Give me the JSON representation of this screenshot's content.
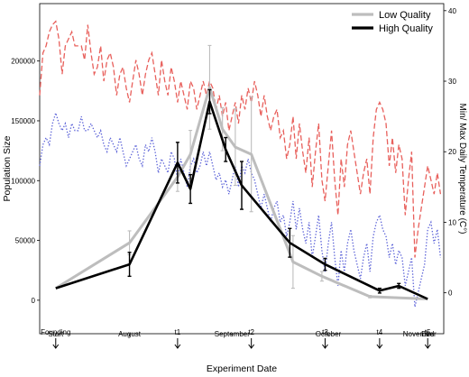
{
  "chart_data": {
    "type": "line",
    "xlabel": "Experiment Date",
    "ylabel_left": "Population Size",
    "ylabel_right": "Min/ Max Daily Temperature (C°)",
    "x_range_days": [
      -5,
      121
    ],
    "ylim_left": [
      -28000,
      248000
    ],
    "ylim_right": [
      -5.8,
      41
    ],
    "x_ticks": [
      {
        "label": "Start",
        "day": 0
      },
      {
        "label": "August",
        "day": 23
      },
      {
        "label": "September",
        "day": 55
      },
      {
        "label": "October",
        "day": 85
      },
      {
        "label": "November",
        "day": 116,
        "offset_label": true
      },
      {
        "label": "End",
        "day": 116
      }
    ],
    "y_ticks_left": [
      0,
      50000,
      100000,
      150000,
      200000
    ],
    "y_ticks_right": [
      0,
      10,
      20,
      30,
      40
    ],
    "legend": {
      "position": "top-right",
      "entries": [
        {
          "name": "Low Quality",
          "color": "#bdbdbd"
        },
        {
          "name": "High Quality",
          "color": "#000000"
        }
      ]
    },
    "series": [
      {
        "name": "Low Quality",
        "color": "#bdbdbd",
        "points": [
          {
            "day": 0,
            "value": 10000
          },
          {
            "day": 23,
            "value": 48000,
            "err": 10000
          },
          {
            "day": 38,
            "value": 103000,
            "err": 12000
          },
          {
            "day": 42,
            "value": 122000,
            "err": 20000
          },
          {
            "day": 48,
            "value": 178000,
            "err": 35000
          },
          {
            "day": 52,
            "value": 143000,
            "err": 18000
          },
          {
            "day": 56,
            "value": 128000,
            "err": 32000
          },
          {
            "day": 61,
            "value": 122000,
            "err": 48000
          },
          {
            "day": 74,
            "value": 32000,
            "err": 22000
          },
          {
            "day": 83,
            "value": 20000,
            "err": 4000
          },
          {
            "day": 98,
            "value": 3000,
            "err": 1000
          },
          {
            "day": 116,
            "value": 1000
          }
        ]
      },
      {
        "name": "High Quality",
        "color": "#000000",
        "points": [
          {
            "day": 0,
            "value": 10000
          },
          {
            "day": 23,
            "value": 30000,
            "err": 10000
          },
          {
            "day": 38,
            "value": 115000,
            "err": 17000
          },
          {
            "day": 42,
            "value": 93000,
            "err": 12000
          },
          {
            "day": 48,
            "value": 166000,
            "err": 10000
          },
          {
            "day": 53,
            "value": 126000,
            "err": 10000
          },
          {
            "day": 58,
            "value": 96000,
            "err": 20000
          },
          {
            "day": 73,
            "value": 48000,
            "err": 12000
          },
          {
            "day": 84,
            "value": 30000,
            "err": 5000
          },
          {
            "day": 101,
            "value": 8000,
            "err": 2000
          },
          {
            "day": 107,
            "value": 12000,
            "err": 2000
          },
          {
            "day": 116,
            "value": 1000
          }
        ]
      }
    ],
    "temperature": {
      "max_color": "#e8605c",
      "min_color": "#5b62d8",
      "max": [
        {
          "day": -5,
          "t": 28
        },
        {
          "day": -4,
          "t": 34
        },
        {
          "day": -3,
          "t": 35
        },
        {
          "day": -2,
          "t": 37
        },
        {
          "day": -1,
          "t": 38
        },
        {
          "day": 0,
          "t": 38.5
        },
        {
          "day": 1,
          "t": 36
        },
        {
          "day": 2,
          "t": 31
        },
        {
          "day": 3,
          "t": 35
        },
        {
          "day": 4,
          "t": 36
        },
        {
          "day": 5,
          "t": 37
        },
        {
          "day": 6,
          "t": 35
        },
        {
          "day": 7,
          "t": 35
        },
        {
          "day": 8,
          "t": 35
        },
        {
          "day": 9,
          "t": 33
        },
        {
          "day": 10,
          "t": 38
        },
        {
          "day": 11,
          "t": 34
        },
        {
          "day": 12,
          "t": 31
        },
        {
          "day": 13,
          "t": 32
        },
        {
          "day": 14,
          "t": 35
        },
        {
          "day": 15,
          "t": 30
        },
        {
          "day": 16,
          "t": 33
        },
        {
          "day": 17,
          "t": 34
        },
        {
          "day": 18,
          "t": 32
        },
        {
          "day": 19,
          "t": 28
        },
        {
          "day": 20,
          "t": 31
        },
        {
          "day": 21,
          "t": 32
        },
        {
          "day": 22,
          "t": 29
        },
        {
          "day": 23,
          "t": 27
        },
        {
          "day": 24,
          "t": 30
        },
        {
          "day": 25,
          "t": 33
        },
        {
          "day": 26,
          "t": 31
        },
        {
          "day": 27,
          "t": 28
        },
        {
          "day": 28,
          "t": 31
        },
        {
          "day": 29,
          "t": 33
        },
        {
          "day": 30,
          "t": 34
        },
        {
          "day": 31,
          "t": 31
        },
        {
          "day": 32,
          "t": 28
        },
        {
          "day": 33,
          "t": 33
        },
        {
          "day": 34,
          "t": 30
        },
        {
          "day": 35,
          "t": 28
        },
        {
          "day": 36,
          "t": 32
        },
        {
          "day": 37,
          "t": 30
        },
        {
          "day": 38,
          "t": 27
        },
        {
          "day": 39,
          "t": 30
        },
        {
          "day": 40,
          "t": 28
        },
        {
          "day": 41,
          "t": 26
        },
        {
          "day": 42,
          "t": 30
        },
        {
          "day": 43,
          "t": 29
        },
        {
          "day": 44,
          "t": 26
        },
        {
          "day": 45,
          "t": 28
        },
        {
          "day": 46,
          "t": 30
        },
        {
          "day": 47,
          "t": 28
        },
        {
          "day": 48,
          "t": 30
        },
        {
          "day": 49,
          "t": 29
        },
        {
          "day": 50,
          "t": 26
        },
        {
          "day": 51,
          "t": 28
        },
        {
          "day": 52,
          "t": 25
        },
        {
          "day": 53,
          "t": 27
        },
        {
          "day": 54,
          "t": 23
        },
        {
          "day": 55,
          "t": 25
        },
        {
          "day": 56,
          "t": 27
        },
        {
          "day": 57,
          "t": 24
        },
        {
          "day": 58,
          "t": 28
        },
        {
          "day": 59,
          "t": 26
        },
        {
          "day": 60,
          "t": 29
        },
        {
          "day": 61,
          "t": 27
        },
        {
          "day": 62,
          "t": 30
        },
        {
          "day": 63,
          "t": 28
        },
        {
          "day": 64,
          "t": 25
        },
        {
          "day": 65,
          "t": 28
        },
        {
          "day": 66,
          "t": 25
        },
        {
          "day": 67,
          "t": 23
        },
        {
          "day": 68,
          "t": 25
        },
        {
          "day": 69,
          "t": 26
        },
        {
          "day": 70,
          "t": 22
        },
        {
          "day": 71,
          "t": 23
        },
        {
          "day": 72,
          "t": 19
        },
        {
          "day": 73,
          "t": 21
        },
        {
          "day": 74,
          "t": 25
        },
        {
          "day": 75,
          "t": 19
        },
        {
          "day": 76,
          "t": 24
        },
        {
          "day": 77,
          "t": 20
        },
        {
          "day": 78,
          "t": 17
        },
        {
          "day": 79,
          "t": 22
        },
        {
          "day": 80,
          "t": 15
        },
        {
          "day": 81,
          "t": 20
        },
        {
          "day": 82,
          "t": 24
        },
        {
          "day": 83,
          "t": 16
        },
        {
          "day": 84,
          "t": 13
        },
        {
          "day": 85,
          "t": 18
        },
        {
          "day": 86,
          "t": 23
        },
        {
          "day": 87,
          "t": 16
        },
        {
          "day": 88,
          "t": 11
        },
        {
          "day": 89,
          "t": 19
        },
        {
          "day": 90,
          "t": 15
        },
        {
          "day": 91,
          "t": 21
        },
        {
          "day": 92,
          "t": 23
        },
        {
          "day": 93,
          "t": 20
        },
        {
          "day": 94,
          "t": 17
        },
        {
          "day": 95,
          "t": 14
        },
        {
          "day": 96,
          "t": 17
        },
        {
          "day": 97,
          "t": 19
        },
        {
          "day": 98,
          "t": 14
        },
        {
          "day": 99,
          "t": 22
        },
        {
          "day": 100,
          "t": 26
        },
        {
          "day": 101,
          "t": 27
        },
        {
          "day": 102,
          "t": 26
        },
        {
          "day": 103,
          "t": 24
        },
        {
          "day": 104,
          "t": 18
        },
        {
          "day": 105,
          "t": 22
        },
        {
          "day": 106,
          "t": 17
        },
        {
          "day": 107,
          "t": 21
        },
        {
          "day": 108,
          "t": 19
        },
        {
          "day": 109,
          "t": 11
        },
        {
          "day": 110,
          "t": 16
        },
        {
          "day": 111,
          "t": 20
        },
        {
          "day": 112,
          "t": 5
        },
        {
          "day": 113,
          "t": 9
        },
        {
          "day": 114,
          "t": 12
        },
        {
          "day": 115,
          "t": 15
        },
        {
          "day": 116,
          "t": 18
        },
        {
          "day": 117,
          "t": 16
        },
        {
          "day": 118,
          "t": 14
        },
        {
          "day": 119,
          "t": 17
        },
        {
          "day": 120,
          "t": 14
        }
      ],
      "min": [
        {
          "day": -5,
          "t": 18
        },
        {
          "day": -4,
          "t": 21
        },
        {
          "day": -3,
          "t": 22
        },
        {
          "day": -2,
          "t": 21
        },
        {
          "day": -1,
          "t": 24
        },
        {
          "day": 0,
          "t": 25.5
        },
        {
          "day": 1,
          "t": 24
        },
        {
          "day": 2,
          "t": 23
        },
        {
          "day": 3,
          "t": 24
        },
        {
          "day": 4,
          "t": 22
        },
        {
          "day": 5,
          "t": 24
        },
        {
          "day": 6,
          "t": 23
        },
        {
          "day": 7,
          "t": 23
        },
        {
          "day": 8,
          "t": 25
        },
        {
          "day": 9,
          "t": 23
        },
        {
          "day": 10,
          "t": 23
        },
        {
          "day": 11,
          "t": 24
        },
        {
          "day": 12,
          "t": 23
        },
        {
          "day": 13,
          "t": 22
        },
        {
          "day": 14,
          "t": 23
        },
        {
          "day": 15,
          "t": 21
        },
        {
          "day": 16,
          "t": 20
        },
        {
          "day": 17,
          "t": 22
        },
        {
          "day": 18,
          "t": 21
        },
        {
          "day": 19,
          "t": 20
        },
        {
          "day": 20,
          "t": 22
        },
        {
          "day": 21,
          "t": 20
        },
        {
          "day": 22,
          "t": 18
        },
        {
          "day": 23,
          "t": 19
        },
        {
          "day": 24,
          "t": 20
        },
        {
          "day": 25,
          "t": 21
        },
        {
          "day": 26,
          "t": 19
        },
        {
          "day": 27,
          "t": 18
        },
        {
          "day": 28,
          "t": 21
        },
        {
          "day": 29,
          "t": 20
        },
        {
          "day": 30,
          "t": 22
        },
        {
          "day": 31,
          "t": 20
        },
        {
          "day": 32,
          "t": 17
        },
        {
          "day": 33,
          "t": 19
        },
        {
          "day": 34,
          "t": 18
        },
        {
          "day": 35,
          "t": 17
        },
        {
          "day": 36,
          "t": 20
        },
        {
          "day": 37,
          "t": 19
        },
        {
          "day": 38,
          "t": 16
        },
        {
          "day": 39,
          "t": 19
        },
        {
          "day": 40,
          "t": 17
        },
        {
          "day": 41,
          "t": 15
        },
        {
          "day": 42,
          "t": 18
        },
        {
          "day": 43,
          "t": 19
        },
        {
          "day": 44,
          "t": 17
        },
        {
          "day": 45,
          "t": 18
        },
        {
          "day": 46,
          "t": 20
        },
        {
          "day": 47,
          "t": 18
        },
        {
          "day": 48,
          "t": 20
        },
        {
          "day": 49,
          "t": 18
        },
        {
          "day": 50,
          "t": 16
        },
        {
          "day": 51,
          "t": 17
        },
        {
          "day": 52,
          "t": 15
        },
        {
          "day": 53,
          "t": 16
        },
        {
          "day": 54,
          "t": 14
        },
        {
          "day": 55,
          "t": 16
        },
        {
          "day": 56,
          "t": 18
        },
        {
          "day": 57,
          "t": 15
        },
        {
          "day": 58,
          "t": 18
        },
        {
          "day": 59,
          "t": 17
        },
        {
          "day": 60,
          "t": 19
        },
        {
          "day": 61,
          "t": 17
        },
        {
          "day": 62,
          "t": 16
        },
        {
          "day": 63,
          "t": 14
        },
        {
          "day": 64,
          "t": 12
        },
        {
          "day": 65,
          "t": 14
        },
        {
          "day": 66,
          "t": 12
        },
        {
          "day": 67,
          "t": 10
        },
        {
          "day": 68,
          "t": 12
        },
        {
          "day": 69,
          "t": 13
        },
        {
          "day": 70,
          "t": 10
        },
        {
          "day": 71,
          "t": 11
        },
        {
          "day": 72,
          "t": 8
        },
        {
          "day": 73,
          "t": 10
        },
        {
          "day": 74,
          "t": 13
        },
        {
          "day": 75,
          "t": 9
        },
        {
          "day": 76,
          "t": 12
        },
        {
          "day": 77,
          "t": 9
        },
        {
          "day": 78,
          "t": 7
        },
        {
          "day": 79,
          "t": 10
        },
        {
          "day": 80,
          "t": 5
        },
        {
          "day": 81,
          "t": 8
        },
        {
          "day": 82,
          "t": 11
        },
        {
          "day": 83,
          "t": 6
        },
        {
          "day": 84,
          "t": 3
        },
        {
          "day": 85,
          "t": 7
        },
        {
          "day": 86,
          "t": 10
        },
        {
          "day": 87,
          "t": 5
        },
        {
          "day": 88,
          "t": 1
        },
        {
          "day": 89,
          "t": 6
        },
        {
          "day": 90,
          "t": 3
        },
        {
          "day": 91,
          "t": 7
        },
        {
          "day": 92,
          "t": 9
        },
        {
          "day": 93,
          "t": 6
        },
        {
          "day": 94,
          "t": 4
        },
        {
          "day": 95,
          "t": 2
        },
        {
          "day": 96,
          "t": 5
        },
        {
          "day": 97,
          "t": 7
        },
        {
          "day": 98,
          "t": 3
        },
        {
          "day": 99,
          "t": 8
        },
        {
          "day": 100,
          "t": 10
        },
        {
          "day": 101,
          "t": 11
        },
        {
          "day": 102,
          "t": 9
        },
        {
          "day": 103,
          "t": 8
        },
        {
          "day": 104,
          "t": 5
        },
        {
          "day": 105,
          "t": 7
        },
        {
          "day": 106,
          "t": 4
        },
        {
          "day": 107,
          "t": 6
        },
        {
          "day": 108,
          "t": 5
        },
        {
          "day": 109,
          "t": 1
        },
        {
          "day": 110,
          "t": 3
        },
        {
          "day": 111,
          "t": 5
        },
        {
          "day": 112,
          "t": -2
        },
        {
          "day": 113,
          "t": 0
        },
        {
          "day": 114,
          "t": 2
        },
        {
          "day": 115,
          "t": 4
        },
        {
          "day": 116,
          "t": 9
        },
        {
          "day": 117,
          "t": 10
        },
        {
          "day": 118,
          "t": 7
        },
        {
          "day": 119,
          "t": 9
        },
        {
          "day": 120,
          "t": 5
        }
      ]
    },
    "annotations": [
      {
        "label": "Founding",
        "day": 0
      },
      {
        "label": "t1",
        "day": 38
      },
      {
        "label": "t2",
        "day": 61
      },
      {
        "label": "t3",
        "day": 84
      },
      {
        "label": "t4",
        "day": 101
      },
      {
        "label": "t5",
        "day": 116
      }
    ]
  }
}
